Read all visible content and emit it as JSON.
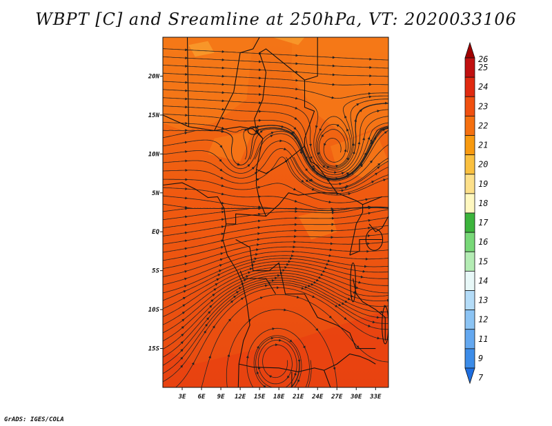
{
  "title": "WBPT [C] and Sreamline at 250hPa, VT: 2020033106",
  "footer": "GrADS: IGES/COLA",
  "map": {
    "lon_range": [
      0,
      35
    ],
    "lat_range": [
      -20,
      25
    ],
    "lon_ticks": [
      "3E",
      "6E",
      "9E",
      "12E",
      "15E",
      "18E",
      "21E",
      "24E",
      "27E",
      "30E",
      "33E"
    ],
    "lat_ticks": [
      "20N",
      "15N",
      "10N",
      "5N",
      "EQ",
      "5S",
      "10S",
      "15S"
    ],
    "field_colors": [
      "#e84010",
      "#f05a10",
      "#f57a18",
      "#f8a030"
    ]
  },
  "colorbar": {
    "levels": [
      "26",
      "25",
      "24",
      "23",
      "22",
      "21",
      "20",
      "19",
      "18",
      "17",
      "16",
      "15",
      "14",
      "13",
      "12",
      "11",
      "9",
      "7"
    ],
    "colors": [
      "#a00000",
      "#c01010",
      "#e02a10",
      "#f05010",
      "#f57010",
      "#f89a10",
      "#fac040",
      "#fde08a",
      "#fff8c0",
      "#3cb43c",
      "#78d878",
      "#b4ecb4",
      "#e8f8f8",
      "#b4dcf8",
      "#8cc4f4",
      "#64a8f0",
      "#3c8ce8",
      "#1e6ee0"
    ]
  }
}
